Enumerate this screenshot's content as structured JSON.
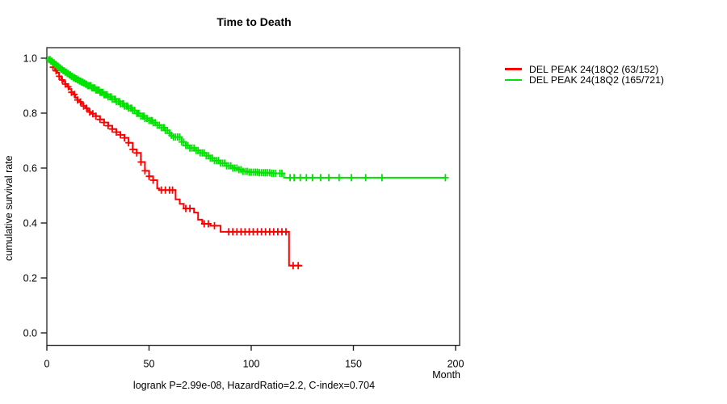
{
  "chart_data": {
    "type": "line",
    "subtype": "kaplan-meier-step",
    "title": "Time to Death",
    "xlabel": "Month",
    "ylabel": "cumulative survival rate",
    "xlim": [
      0,
      200
    ],
    "ylim": [
      0.0,
      1.0
    ],
    "x_ticks": [
      0,
      50,
      100,
      150,
      200
    ],
    "y_ticks": [
      "0.0",
      "0.2",
      "0.4",
      "0.6",
      "0.8",
      "1.0"
    ],
    "grid": false,
    "legend_position": "right-outside",
    "annotation": "logrank P=2.99e-08, HazardRatio=2.2, C-index=0.704",
    "series": [
      {
        "name": "DEL PEAK 24(18Q2 (63/152)",
        "color": "#ff0000",
        "events": 63,
        "n": 152,
        "end_month": 125,
        "steps": [
          [
            0,
            1.0
          ],
          [
            1,
            0.993
          ],
          [
            2,
            0.98
          ],
          [
            3,
            0.967
          ],
          [
            4,
            0.954
          ],
          [
            5,
            0.947
          ],
          [
            6,
            0.934
          ],
          [
            7,
            0.921
          ],
          [
            8,
            0.914
          ],
          [
            9,
            0.906
          ],
          [
            10,
            0.896
          ],
          [
            11,
            0.888
          ],
          [
            12,
            0.876
          ],
          [
            13,
            0.868
          ],
          [
            14,
            0.856
          ],
          [
            15,
            0.848
          ],
          [
            16,
            0.841
          ],
          [
            17,
            0.833
          ],
          [
            18,
            0.826
          ],
          [
            19,
            0.818
          ],
          [
            20,
            0.81
          ],
          [
            21,
            0.804
          ],
          [
            22,
            0.798
          ],
          [
            24,
            0.789
          ],
          [
            26,
            0.777
          ],
          [
            28,
            0.766
          ],
          [
            30,
            0.754
          ],
          [
            32,
            0.742
          ],
          [
            34,
            0.731
          ],
          [
            36,
            0.721
          ],
          [
            38,
            0.71
          ],
          [
            40,
            0.692
          ],
          [
            42,
            0.668
          ],
          [
            44,
            0.655
          ],
          [
            46,
            0.622
          ],
          [
            48,
            0.59
          ],
          [
            50,
            0.57
          ],
          [
            52,
            0.556
          ],
          [
            54,
            0.526
          ],
          [
            55,
            0.52
          ],
          [
            63,
            0.486
          ],
          [
            65,
            0.47
          ],
          [
            67,
            0.453
          ],
          [
            72,
            0.438
          ],
          [
            74,
            0.412
          ],
          [
            76,
            0.397
          ],
          [
            80,
            0.39
          ],
          [
            85,
            0.368
          ],
          [
            118.5,
            0.245
          ]
        ],
        "censor_months": [
          3,
          4.5,
          6,
          7.5,
          9,
          10.5,
          12,
          13.5,
          15,
          16.5,
          18,
          19.5,
          21,
          22.5,
          24,
          26,
          28,
          30,
          32,
          34,
          36,
          38,
          40,
          42,
          44,
          46,
          48,
          50,
          52,
          56,
          58,
          60,
          61.5,
          68,
          70,
          77,
          79,
          82,
          89,
          91,
          93,
          95,
          97,
          99,
          101,
          103,
          105,
          107,
          109,
          111,
          113,
          115,
          117,
          120.5,
          123
        ]
      },
      {
        "name": "DEL PEAK 24(18Q2 (165/721)",
        "color": "#00e300",
        "events": 165,
        "n": 721,
        "end_month": 195,
        "steps": [
          [
            0,
            1.0
          ],
          [
            1,
            0.995
          ],
          [
            2,
            0.989
          ],
          [
            3,
            0.983
          ],
          [
            4,
            0.977
          ],
          [
            5,
            0.971
          ],
          [
            6,
            0.965
          ],
          [
            7,
            0.959
          ],
          [
            8,
            0.954
          ],
          [
            9,
            0.949
          ],
          [
            10,
            0.944
          ],
          [
            11,
            0.939
          ],
          [
            12,
            0.934
          ],
          [
            13,
            0.929
          ],
          [
            14,
            0.925
          ],
          [
            15,
            0.921
          ],
          [
            16,
            0.917
          ],
          [
            17,
            0.913
          ],
          [
            18,
            0.909
          ],
          [
            19,
            0.905
          ],
          [
            20,
            0.9
          ],
          [
            22,
            0.892
          ],
          [
            24,
            0.884
          ],
          [
            26,
            0.876
          ],
          [
            28,
            0.867
          ],
          [
            30,
            0.859
          ],
          [
            32,
            0.851
          ],
          [
            34,
            0.842
          ],
          [
            36,
            0.834
          ],
          [
            38,
            0.826
          ],
          [
            40,
            0.818
          ],
          [
            42,
            0.81
          ],
          [
            44,
            0.799
          ],
          [
            46,
            0.789
          ],
          [
            48,
            0.781
          ],
          [
            50,
            0.773
          ],
          [
            52,
            0.765
          ],
          [
            54,
            0.756
          ],
          [
            56,
            0.747
          ],
          [
            58,
            0.737
          ],
          [
            60,
            0.727
          ],
          [
            61,
            0.719
          ],
          [
            62,
            0.713
          ],
          [
            66,
            0.695
          ],
          [
            68,
            0.682
          ],
          [
            70,
            0.673
          ],
          [
            73,
            0.664
          ],
          [
            75,
            0.655
          ],
          [
            78,
            0.645
          ],
          [
            80,
            0.636
          ],
          [
            82,
            0.627
          ],
          [
            85,
            0.618
          ],
          [
            88,
            0.608
          ],
          [
            91,
            0.6
          ],
          [
            94,
            0.594
          ],
          [
            96,
            0.588
          ],
          [
            99,
            0.585
          ],
          [
            104,
            0.583
          ],
          [
            110,
            0.581
          ],
          [
            116,
            0.565
          ]
        ],
        "censor_months": [
          1,
          1.5,
          2,
          2.5,
          3,
          3.5,
          4,
          4.5,
          5,
          5.5,
          6,
          6.5,
          7,
          7.5,
          8,
          8.5,
          9,
          9.5,
          10,
          10.5,
          11,
          11.5,
          12,
          12.5,
          13,
          13.5,
          14,
          14.5,
          15,
          15.5,
          16,
          16.5,
          17,
          17.5,
          18,
          18.5,
          19,
          19.5,
          20,
          20.5,
          21,
          21.5,
          22,
          22.5,
          23,
          23.5,
          24,
          24.5,
          25,
          25.5,
          26,
          26.5,
          27,
          27.5,
          28,
          28.5,
          29,
          29.5,
          30,
          31,
          31.5,
          32,
          33,
          33.5,
          34,
          35,
          35.5,
          36,
          37,
          37.5,
          38,
          39,
          39.5,
          40,
          41,
          41.5,
          42,
          43,
          44,
          44.5,
          45,
          46,
          47,
          47.5,
          48,
          49,
          50,
          51,
          51.5,
          52,
          53,
          54,
          55,
          56,
          57,
          57.5,
          58,
          59,
          60,
          61,
          62,
          63,
          64,
          65,
          66,
          67,
          68,
          69,
          70,
          71,
          72,
          73,
          74,
          75,
          76,
          77,
          78,
          79,
          80,
          81,
          82,
          83,
          84,
          85,
          86,
          87,
          88,
          89,
          90,
          91,
          92,
          93,
          94,
          95,
          96,
          97,
          98,
          99,
          100,
          101,
          102,
          103,
          104,
          105,
          106,
          107,
          108,
          109,
          110,
          111,
          112,
          114,
          115,
          119,
          121,
          124,
          127,
          130,
          134,
          138,
          143,
          149,
          156,
          164,
          195
        ]
      }
    ]
  }
}
